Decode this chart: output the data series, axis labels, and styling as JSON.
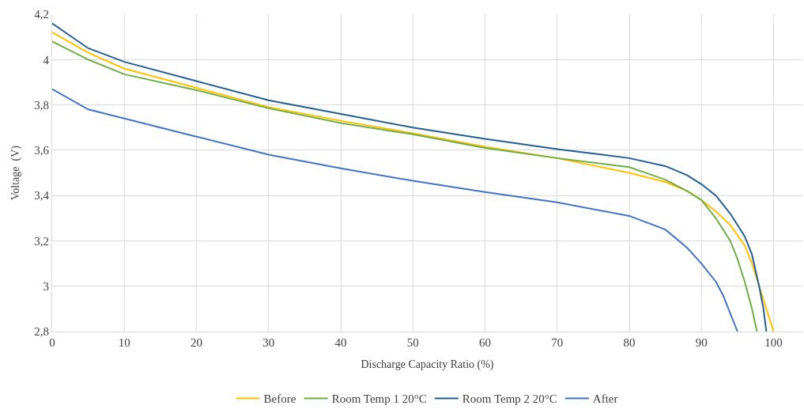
{
  "chart_data": {
    "type": "line",
    "xlabel": "Discharge Capacity Ratio (%)",
    "ylabel": "Voltage  (V)",
    "xlim": [
      0,
      104
    ],
    "xticks": [
      0,
      10,
      20,
      30,
      40,
      50,
      60,
      70,
      80,
      90,
      100
    ],
    "ylim": [
      2.8,
      4.2
    ],
    "yticks": [
      {
        "value": 2.8,
        "label": "2,8"
      },
      {
        "value": 3,
        "label": "3"
      },
      {
        "value": 3.2,
        "label": "3,2"
      },
      {
        "value": 3.4,
        "label": "3,4"
      },
      {
        "value": 3.6,
        "label": "3,6"
      },
      {
        "value": 3.8,
        "label": "3,8"
      },
      {
        "value": 4,
        "label": "4"
      },
      {
        "value": 4.2,
        "label": "4,2"
      }
    ],
    "grid": true,
    "legend": "bottom",
    "marker": "none",
    "line_style": "solid",
    "series": [
      {
        "name": "Before",
        "color": "#ffc000",
        "x": [
          0,
          5,
          10,
          20,
          30,
          40,
          50,
          60,
          70,
          80,
          85,
          88,
          90,
          92,
          94,
          96,
          97,
          98,
          99,
          100
        ],
        "values": [
          4.12,
          4.03,
          3.96,
          3.875,
          3.79,
          3.73,
          3.675,
          3.615,
          3.565,
          3.5,
          3.46,
          3.42,
          3.38,
          3.33,
          3.27,
          3.18,
          3.1,
          3.0,
          2.9,
          2.8
        ]
      },
      {
        "name": "Room Temp 1 20°C",
        "color": "#70ad47",
        "x": [
          0,
          5,
          10,
          20,
          30,
          40,
          50,
          60,
          70,
          80,
          85,
          88,
          90,
          92,
          94,
          95,
          96,
          97,
          97.7
        ],
        "values": [
          4.08,
          4.0,
          3.935,
          3.865,
          3.785,
          3.72,
          3.67,
          3.61,
          3.565,
          3.525,
          3.47,
          3.42,
          3.38,
          3.3,
          3.2,
          3.12,
          3.02,
          2.9,
          2.8
        ]
      },
      {
        "name": "Room Temp 2 20°C",
        "color": "#255e91",
        "x": [
          0,
          5,
          10,
          20,
          30,
          40,
          50,
          60,
          70,
          80,
          85,
          88,
          90,
          92,
          94,
          96,
          97,
          98,
          98.6,
          99
        ],
        "values": [
          4.16,
          4.05,
          3.99,
          3.905,
          3.82,
          3.76,
          3.7,
          3.65,
          3.605,
          3.565,
          3.53,
          3.49,
          3.45,
          3.4,
          3.32,
          3.22,
          3.14,
          3.0,
          2.9,
          2.8
        ]
      },
      {
        "name": "After",
        "color": "#4472c4",
        "x": [
          0,
          5,
          10,
          20,
          30,
          40,
          50,
          60,
          70,
          80,
          85,
          88,
          90,
          92,
          93,
          94,
          95
        ],
        "values": [
          3.87,
          3.78,
          3.74,
          3.66,
          3.58,
          3.52,
          3.465,
          3.415,
          3.37,
          3.31,
          3.25,
          3.17,
          3.1,
          3.02,
          2.96,
          2.88,
          2.8
        ]
      }
    ]
  }
}
